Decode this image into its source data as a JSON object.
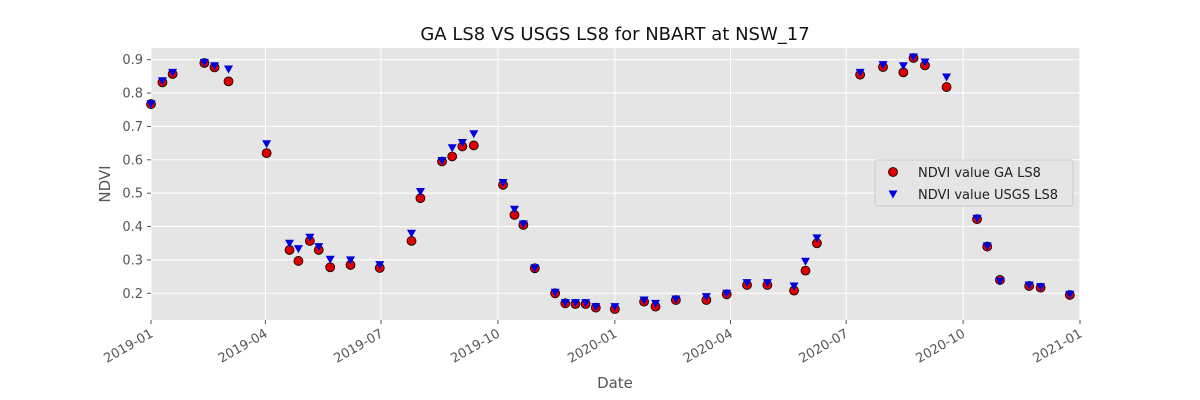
{
  "chart_data": {
    "type": "scatter",
    "title": "GA LS8 VS USGS LS8 for NBART at NSW_17",
    "xlabel": "Date",
    "ylabel": "NDVI",
    "xlim": [
      "2019-01-01",
      "2021-01-01"
    ],
    "ylim": [
      0.12,
      0.935
    ],
    "x_ticks": [
      "2019-01",
      "2019-04",
      "2019-07",
      "2019-10",
      "2020-01",
      "2020-04",
      "2020-07",
      "2020-10",
      "2021-01"
    ],
    "y_ticks": [
      0.2,
      0.3,
      0.4,
      0.5,
      0.6,
      0.7,
      0.8,
      0.9
    ],
    "grid": true,
    "legend": "center-right",
    "colors": {
      "plot_bg": "#e5e5e5",
      "grid": "#ffffff",
      "ga": "#dd0000",
      "usgs": "#0000dd"
    },
    "series": [
      {
        "name": "NDVI value GA LS8",
        "marker": "circle",
        "points": [
          [
            "2019-01-01",
            0.767
          ],
          [
            "2019-01-10",
            0.832
          ],
          [
            "2019-01-18",
            0.857
          ],
          [
            "2019-02-12",
            0.89
          ],
          [
            "2019-02-20",
            0.877
          ],
          [
            "2019-03-03",
            0.835
          ],
          [
            "2019-04-02",
            0.62
          ],
          [
            "2019-04-20",
            0.33
          ],
          [
            "2019-04-27",
            0.297
          ],
          [
            "2019-05-06",
            0.357
          ],
          [
            "2019-05-13",
            0.33
          ],
          [
            "2019-05-22",
            0.278
          ],
          [
            "2019-06-07",
            0.285
          ],
          [
            "2019-06-30",
            0.276
          ],
          [
            "2019-07-25",
            0.357
          ],
          [
            "2019-08-01",
            0.485
          ],
          [
            "2019-08-18",
            0.595
          ],
          [
            "2019-08-26",
            0.61
          ],
          [
            "2019-09-03",
            0.64
          ],
          [
            "2019-09-12",
            0.643
          ],
          [
            "2019-10-05",
            0.525
          ],
          [
            "2019-10-14",
            0.435
          ],
          [
            "2019-10-21",
            0.405
          ],
          [
            "2019-10-30",
            0.275
          ],
          [
            "2019-11-15",
            0.2
          ],
          [
            "2019-11-23",
            0.17
          ],
          [
            "2019-12-01",
            0.168
          ],
          [
            "2019-12-09",
            0.168
          ],
          [
            "2019-12-17",
            0.157
          ],
          [
            "2020-01-01",
            0.153
          ],
          [
            "2020-01-24",
            0.175
          ],
          [
            "2020-02-02",
            0.16
          ],
          [
            "2020-02-18",
            0.18
          ],
          [
            "2020-03-13",
            0.18
          ],
          [
            "2020-03-29",
            0.197
          ],
          [
            "2020-04-14",
            0.225
          ],
          [
            "2020-04-30",
            0.225
          ],
          [
            "2020-05-21",
            0.208
          ],
          [
            "2020-05-30",
            0.268
          ],
          [
            "2020-06-08",
            0.35
          ],
          [
            "2020-07-12",
            0.855
          ],
          [
            "2020-07-30",
            0.878
          ],
          [
            "2020-08-15",
            0.862
          ],
          [
            "2020-08-23",
            0.905
          ],
          [
            "2020-09-01",
            0.883
          ],
          [
            "2020-09-18",
            0.818
          ],
          [
            "2020-10-12",
            0.422
          ],
          [
            "2020-10-20",
            0.34
          ],
          [
            "2020-10-30",
            0.24
          ],
          [
            "2020-11-22",
            0.222
          ],
          [
            "2020-12-01",
            0.217
          ],
          [
            "2020-12-24",
            0.195
          ]
        ]
      },
      {
        "name": "NDVI value USGS LS8",
        "marker": "triangle-down",
        "points": [
          [
            "2019-01-01",
            0.768
          ],
          [
            "2019-01-10",
            0.837
          ],
          [
            "2019-01-18",
            0.862
          ],
          [
            "2019-02-12",
            0.892
          ],
          [
            "2019-02-20",
            0.882
          ],
          [
            "2019-03-03",
            0.872
          ],
          [
            "2019-04-02",
            0.648
          ],
          [
            "2019-04-20",
            0.35
          ],
          [
            "2019-04-27",
            0.334
          ],
          [
            "2019-05-06",
            0.368
          ],
          [
            "2019-05-13",
            0.34
          ],
          [
            "2019-05-22",
            0.302
          ],
          [
            "2019-06-07",
            0.3
          ],
          [
            "2019-06-30",
            0.286
          ],
          [
            "2019-07-25",
            0.38
          ],
          [
            "2019-08-01",
            0.505
          ],
          [
            "2019-08-18",
            0.598
          ],
          [
            "2019-08-26",
            0.636
          ],
          [
            "2019-09-03",
            0.652
          ],
          [
            "2019-09-12",
            0.678
          ],
          [
            "2019-10-05",
            0.532
          ],
          [
            "2019-10-14",
            0.452
          ],
          [
            "2019-10-21",
            0.408
          ],
          [
            "2019-10-30",
            0.276
          ],
          [
            "2019-11-15",
            0.203
          ],
          [
            "2019-11-23",
            0.172
          ],
          [
            "2019-12-01",
            0.172
          ],
          [
            "2019-12-09",
            0.172
          ],
          [
            "2019-12-17",
            0.16
          ],
          [
            "2020-01-01",
            0.16
          ],
          [
            "2020-01-24",
            0.18
          ],
          [
            "2020-02-02",
            0.17
          ],
          [
            "2020-02-18",
            0.183
          ],
          [
            "2020-03-13",
            0.19
          ],
          [
            "2020-03-29",
            0.2
          ],
          [
            "2020-04-14",
            0.232
          ],
          [
            "2020-04-30",
            0.232
          ],
          [
            "2020-05-21",
            0.222
          ],
          [
            "2020-05-30",
            0.296
          ],
          [
            "2020-06-08",
            0.366
          ],
          [
            "2020-07-12",
            0.862
          ],
          [
            "2020-07-30",
            0.885
          ],
          [
            "2020-08-15",
            0.882
          ],
          [
            "2020-08-23",
            0.908
          ],
          [
            "2020-09-01",
            0.893
          ],
          [
            "2020-09-18",
            0.848
          ],
          [
            "2020-10-12",
            0.425
          ],
          [
            "2020-10-20",
            0.342
          ],
          [
            "2020-10-30",
            0.237
          ],
          [
            "2020-11-22",
            0.225
          ],
          [
            "2020-12-01",
            0.22
          ],
          [
            "2020-12-24",
            0.197
          ]
        ]
      }
    ]
  }
}
